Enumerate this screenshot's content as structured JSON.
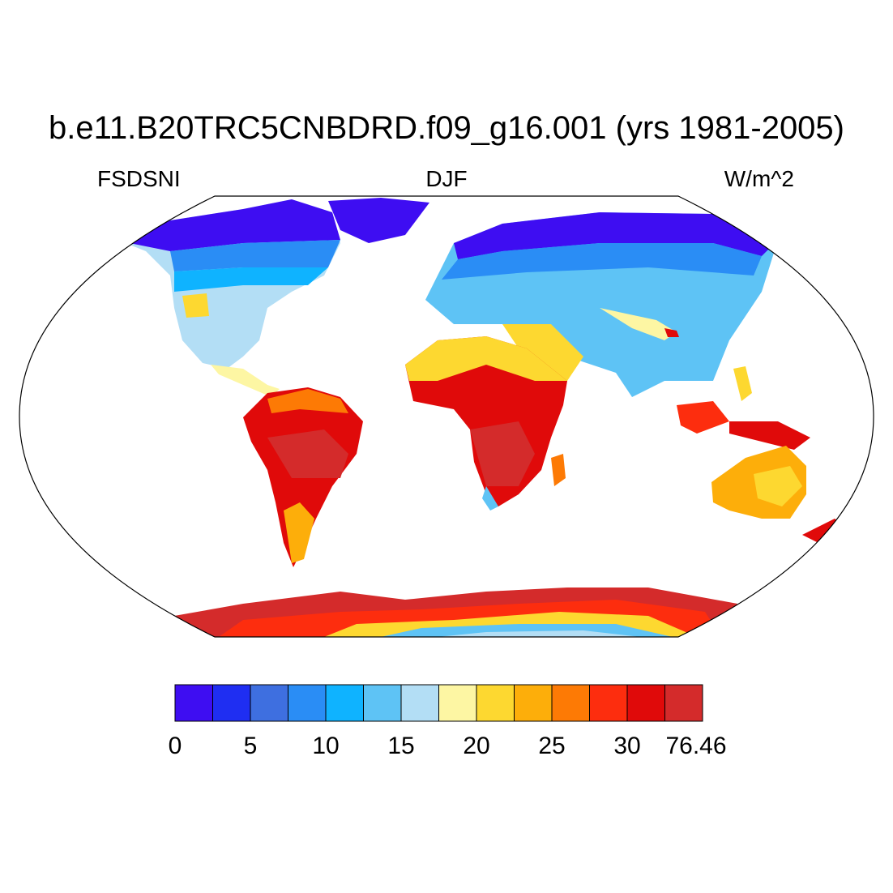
{
  "plot": {
    "title": "b.e11.B20TRC5CNBDRD.f09_g16.001 (yrs 1981-2005)",
    "variable": "FSDSNI",
    "season": "DJF",
    "units": "W/m^2"
  },
  "colorbar": {
    "colors": [
      "#3e0df2",
      "#1f2ef2",
      "#3e6fe0",
      "#2a8df5",
      "#0fb3ff",
      "#5ec3f5",
      "#b3def5",
      "#fdf6a3",
      "#fdd830",
      "#fdae0a",
      "#fd7a05",
      "#fd2d0e",
      "#e00a0a",
      "#d42b2b"
    ],
    "tick_labels": [
      "0",
      "5",
      "10",
      "15",
      "20",
      "25",
      "30",
      "76.46"
    ]
  }
}
